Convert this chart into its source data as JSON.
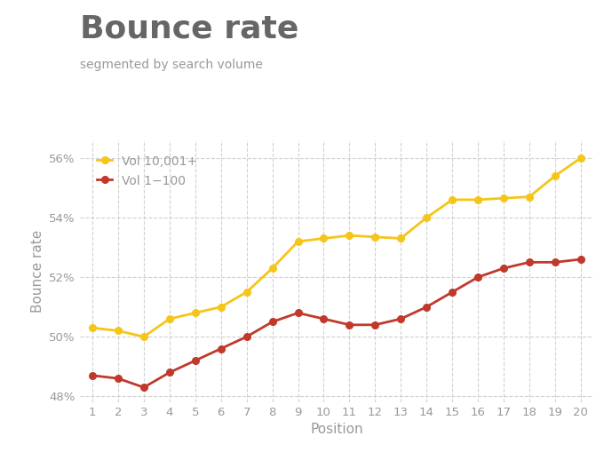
{
  "title": "Bounce rate",
  "subtitle": "segmented by search volume",
  "xlabel": "Position",
  "ylabel": "Bounce rate",
  "positions": [
    1,
    2,
    3,
    4,
    5,
    6,
    7,
    8,
    9,
    10,
    11,
    12,
    13,
    14,
    15,
    16,
    17,
    18,
    19,
    20
  ],
  "vol_high": [
    50.3,
    50.2,
    50.0,
    50.6,
    50.8,
    51.0,
    51.5,
    52.3,
    53.2,
    53.3,
    53.4,
    53.35,
    53.3,
    54.0,
    54.6,
    54.6,
    54.65,
    54.7,
    55.4,
    56.0
  ],
  "vol_low": [
    48.7,
    48.6,
    48.3,
    48.8,
    49.2,
    49.6,
    50.0,
    50.5,
    50.8,
    50.6,
    50.4,
    50.4,
    50.6,
    51.0,
    51.5,
    52.0,
    52.3,
    52.5,
    52.5,
    52.6
  ],
  "color_high": "#F5C518",
  "color_low": "#C0392B",
  "ylim_min": 47.8,
  "ylim_max": 56.6,
  "yticks": [
    48,
    50,
    52,
    54,
    56
  ],
  "background_color": "#ffffff",
  "grid_color": "#cccccc",
  "title_color": "#666666",
  "subtitle_color": "#999999",
  "axis_label_color": "#999999",
  "tick_label_color": "#999999",
  "title_fontsize": 26,
  "subtitle_fontsize": 10,
  "axis_fontsize": 11,
  "tick_fontsize": 9.5
}
